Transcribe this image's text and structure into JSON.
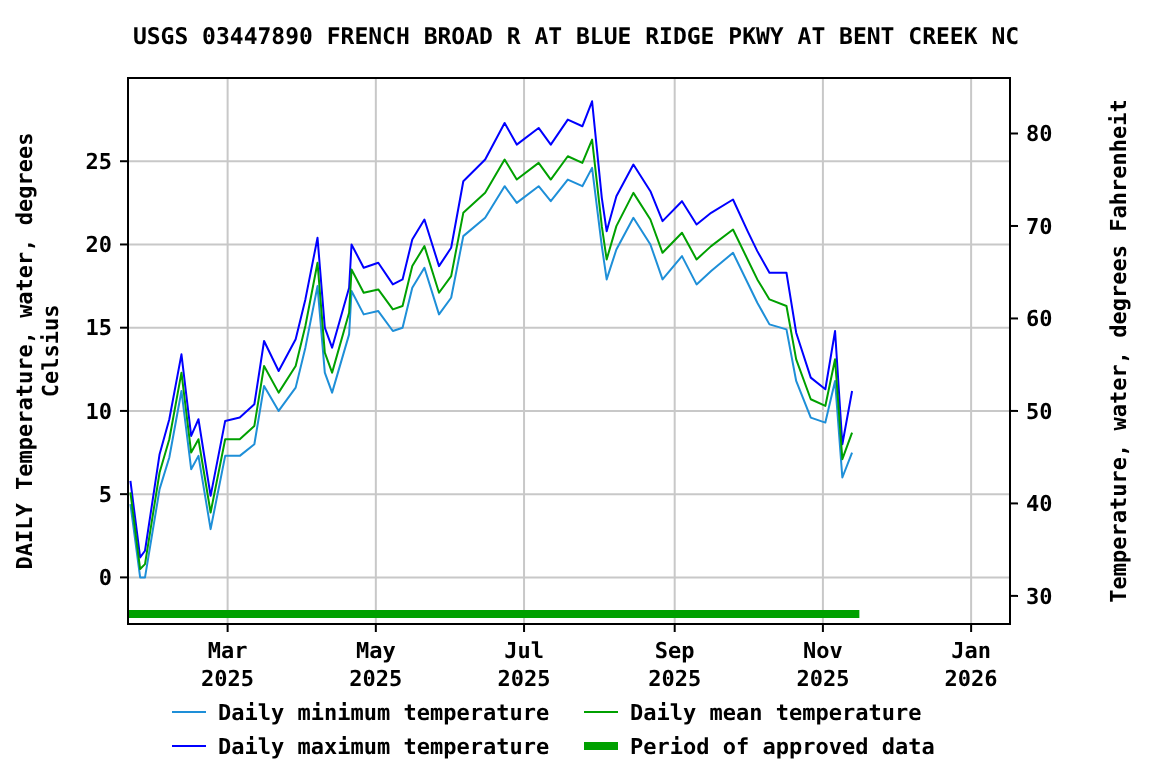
{
  "chart_data": {
    "type": "line",
    "title": "USGS 03447890 FRENCH BROAD R AT BLUE RIDGE PKWY AT BENT CREEK NC",
    "ylabel": "DAILY Temperature, water, degrees\nCelsius",
    "y2label": "Temperature, water, degrees Fahrenheit",
    "x": [
      "2025-01-20",
      "2025-01-24",
      "2025-01-26",
      "2025-02-01",
      "2025-02-05",
      "2025-02-10",
      "2025-02-14",
      "2025-02-17",
      "2025-02-22",
      "2025-02-28",
      "2025-03-06",
      "2025-03-12",
      "2025-03-16",
      "2025-03-22",
      "2025-03-29",
      "2025-04-02",
      "2025-04-07",
      "2025-04-10",
      "2025-04-13",
      "2025-04-20",
      "2025-04-21",
      "2025-04-26",
      "2025-05-02",
      "2025-05-08",
      "2025-05-12",
      "2025-05-16",
      "2025-05-21",
      "2025-05-27",
      "2025-06-01",
      "2025-06-06",
      "2025-06-15",
      "2025-06-23",
      "2025-06-28",
      "2025-07-07",
      "2025-07-12",
      "2025-07-19",
      "2025-07-25",
      "2025-07-29",
      "2025-08-02",
      "2025-08-04",
      "2025-08-08",
      "2025-08-15",
      "2025-08-22",
      "2025-08-27",
      "2025-09-04",
      "2025-09-10",
      "2025-09-16",
      "2025-09-25",
      "2025-10-01",
      "2025-10-05",
      "2025-10-10",
      "2025-10-17",
      "2025-10-21",
      "2025-10-27",
      "2025-11-02",
      "2025-11-06",
      "2025-11-09",
      "2025-11-13"
    ],
    "series": [
      {
        "name": "Daily minimum temperature",
        "color": "#1e8fd8",
        "values": [
          4.4,
          0,
          0,
          5.3,
          7.2,
          11.2,
          6.5,
          7.3,
          2.9,
          7.3,
          7.3,
          8.0,
          11.5,
          10.0,
          11.4,
          13.8,
          17.5,
          12.3,
          11.1,
          14.6,
          17.2,
          15.8,
          16.0,
          14.8,
          15.0,
          17.4,
          18.6,
          15.8,
          16.8,
          20.5,
          21.6,
          23.5,
          22.5,
          23.5,
          22.6,
          23.9,
          23.5,
          24.6,
          19.9,
          17.9,
          19.7,
          21.6,
          20.0,
          17.9,
          19.3,
          17.6,
          18.4,
          19.5,
          17.7,
          16.5,
          15.2,
          14.9,
          11.8,
          9.6,
          9.3,
          11.8,
          6.0,
          7.5
        ]
      },
      {
        "name": "Daily maximum temperature",
        "color": "#0000ff",
        "values": [
          5.8,
          1.2,
          1.6,
          7.4,
          9.5,
          13.4,
          8.5,
          9.5,
          4.9,
          9.4,
          9.6,
          10.4,
          14.2,
          12.4,
          14.3,
          16.7,
          20.4,
          15.0,
          13.8,
          17.4,
          20.0,
          18.6,
          18.9,
          17.6,
          17.9,
          20.3,
          21.5,
          18.7,
          19.8,
          23.8,
          25.1,
          27.3,
          26.0,
          27.0,
          26.0,
          27.5,
          27.1,
          28.6,
          22.8,
          20.8,
          22.9,
          24.8,
          23.2,
          21.4,
          22.6,
          21.2,
          21.9,
          22.7,
          20.8,
          19.6,
          18.3,
          18.3,
          14.7,
          12.0,
          11.3,
          14.8,
          8.0,
          11.2
        ]
      },
      {
        "name": "Daily mean temperature",
        "color": "#00a000",
        "values": [
          5.1,
          0.5,
          0.8,
          6.3,
          8.3,
          12.3,
          7.5,
          8.3,
          3.9,
          8.3,
          8.3,
          9.1,
          12.7,
          11.1,
          12.7,
          15.1,
          18.9,
          13.5,
          12.3,
          15.9,
          18.5,
          17.1,
          17.3,
          16.1,
          16.3,
          18.7,
          19.9,
          17.1,
          18.1,
          21.9,
          23.1,
          25.1,
          23.9,
          24.9,
          23.9,
          25.3,
          24.9,
          26.3,
          21.1,
          19.1,
          21.1,
          23.1,
          21.5,
          19.5,
          20.7,
          19.1,
          19.9,
          20.9,
          19.1,
          17.9,
          16.7,
          16.3,
          13.1,
          10.7,
          10.3,
          13.1,
          7.1,
          8.7
        ]
      },
      {
        "name": "Period of approved data",
        "color": "#00a000",
        "x": [
          "2025-01-19",
          "2025-11-16"
        ],
        "values": [
          -2.2,
          -2.2
        ]
      }
    ],
    "xlim": [
      "2025-01-19",
      "2026-01-17"
    ],
    "xticks": [
      {
        "value": "2025-03-01",
        "label": "Mar\n2025"
      },
      {
        "value": "2025-05-01",
        "label": "May\n2025"
      },
      {
        "value": "2025-07-01",
        "label": "Jul\n2025"
      },
      {
        "value": "2025-09-01",
        "label": "Sep\n2025"
      },
      {
        "value": "2025-11-01",
        "label": "Nov\n2025"
      },
      {
        "value": "2026-01-01",
        "label": "Jan\n2026"
      }
    ],
    "ylim": [
      -2.8,
      30
    ],
    "yticks": [
      0,
      5,
      10,
      15,
      20,
      25
    ],
    "y2lim": [
      26.96,
      86
    ],
    "y2ticks": [
      30,
      40,
      50,
      60,
      70,
      80
    ],
    "grid": true,
    "legend": "bottom"
  }
}
